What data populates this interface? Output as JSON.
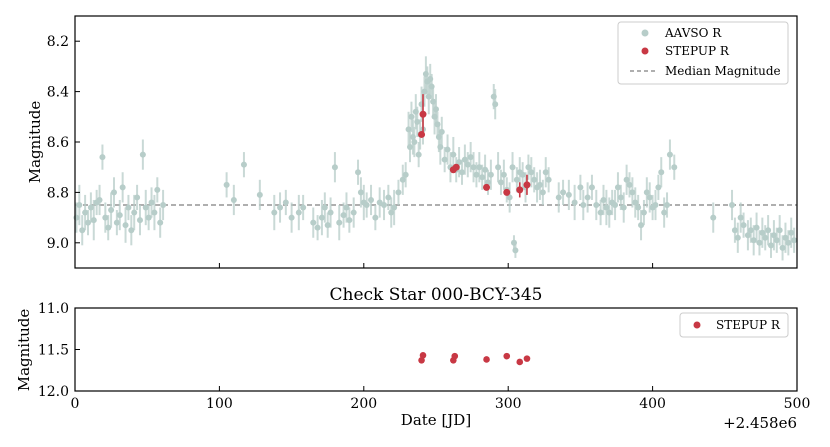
{
  "chart_data": [
    {
      "type": "scatter",
      "title": "",
      "xlabel": "",
      "ylabel": "Magnitude",
      "xlim": [
        0,
        500
      ],
      "ylim": [
        9.1,
        8.1
      ],
      "y_inverted": true,
      "xticks": [
        0,
        100,
        200,
        300,
        400,
        500
      ],
      "yticks": [
        8.2,
        8.4,
        8.6,
        8.8,
        9.0
      ],
      "ytick_labels": [
        "8.2",
        "8.4",
        "8.6",
        "8.8",
        "9.0"
      ],
      "legend": {
        "placement": "top-right",
        "entries": [
          "AAVSO R",
          "STEPUP R",
          "Median Magnitude"
        ]
      },
      "grid": false,
      "median_magnitude": 8.85,
      "series": [
        {
          "name": "AAVSO R",
          "color": "#b7cdc9",
          "points": [
            [
              1,
              8.9,
              0.06
            ],
            [
              3,
              8.85,
              0.08
            ],
            [
              5,
              8.95,
              0.06
            ],
            [
              7,
              8.88,
              0.07
            ],
            [
              9,
              8.92,
              0.05
            ],
            [
              11,
              8.86,
              0.06
            ],
            [
              13,
              8.91,
              0.08
            ],
            [
              15,
              8.84,
              0.05
            ],
            [
              17,
              8.83,
              0.06
            ],
            [
              19,
              8.66,
              0.05
            ],
            [
              21,
              8.9,
              0.06
            ],
            [
              23,
              8.94,
              0.05
            ],
            [
              25,
              8.87,
              0.07
            ],
            [
              27,
              8.8,
              0.06
            ],
            [
              29,
              8.92,
              0.05
            ],
            [
              31,
              8.89,
              0.06
            ],
            [
              33,
              8.78,
              0.06
            ],
            [
              35,
              8.93,
              0.07
            ],
            [
              37,
              8.86,
              0.05
            ],
            [
              39,
              8.95,
              0.06
            ],
            [
              41,
              8.88,
              0.07
            ],
            [
              43,
              8.82,
              0.05
            ],
            [
              45,
              8.91,
              0.06
            ],
            [
              47,
              8.65,
              0.06
            ],
            [
              49,
              8.86,
              0.07
            ],
            [
              51,
              8.9,
              0.05
            ],
            [
              53,
              8.84,
              0.06
            ],
            [
              55,
              8.88,
              0.07
            ],
            [
              57,
              8.79,
              0.05
            ],
            [
              59,
              8.92,
              0.06
            ],
            [
              61,
              8.85,
              0.06
            ],
            [
              105,
              8.77,
              0.05
            ],
            [
              110,
              8.83,
              0.06
            ],
            [
              117,
              8.69,
              0.05
            ],
            [
              128,
              8.81,
              0.06
            ],
            [
              138,
              8.88,
              0.07
            ],
            [
              142,
              8.86,
              0.06
            ],
            [
              146,
              8.84,
              0.05
            ],
            [
              150,
              8.9,
              0.06
            ],
            [
              155,
              8.88,
              0.07
            ],
            [
              158,
              8.86,
              0.05
            ],
            [
              165,
              8.92,
              0.06
            ],
            [
              168,
              8.94,
              0.05
            ],
            [
              171,
              8.9,
              0.07
            ],
            [
              173,
              8.86,
              0.06
            ],
            [
              175,
              8.93,
              0.05
            ],
            [
              177,
              8.88,
              0.06
            ],
            [
              180,
              8.7,
              0.06
            ],
            [
              183,
              8.92,
              0.07
            ],
            [
              186,
              8.89,
              0.05
            ],
            [
              188,
              8.86,
              0.06
            ],
            [
              190,
              8.91,
              0.05
            ],
            [
              193,
              8.88,
              0.06
            ],
            [
              196,
              8.72,
              0.05
            ],
            [
              198,
              8.8,
              0.06
            ],
            [
              200,
              8.84,
              0.07
            ],
            [
              202,
              8.85,
              0.05
            ],
            [
              205,
              8.83,
              0.06
            ],
            [
              208,
              8.9,
              0.05
            ],
            [
              211,
              8.84,
              0.06
            ],
            [
              214,
              8.85,
              0.06
            ],
            [
              217,
              8.82,
              0.05
            ],
            [
              219,
              8.88,
              0.06
            ],
            [
              221,
              8.86,
              0.07
            ],
            [
              224,
              8.8,
              0.05
            ],
            [
              227,
              8.75,
              0.06
            ],
            [
              229,
              8.73,
              0.05
            ],
            [
              231,
              8.55,
              0.07
            ],
            [
              232,
              8.62,
              0.06
            ],
            [
              233,
              8.5,
              0.06
            ],
            [
              234,
              8.58,
              0.07
            ],
            [
              235,
              8.6,
              0.06
            ],
            [
              236,
              8.48,
              0.07
            ],
            [
              237,
              8.52,
              0.06
            ],
            [
              238,
              8.65,
              0.05
            ],
            [
              239,
              8.57,
              0.06
            ],
            [
              240,
              8.45,
              0.07
            ],
            [
              241,
              8.55,
              0.06
            ],
            [
              242,
              8.4,
              0.06
            ],
            [
              243,
              8.33,
              0.07
            ],
            [
              244,
              8.36,
              0.06
            ],
            [
              245,
              8.42,
              0.07
            ],
            [
              246,
              8.35,
              0.06
            ],
            [
              247,
              8.38,
              0.05
            ],
            [
              248,
              8.44,
              0.06
            ],
            [
              249,
              8.5,
              0.07
            ],
            [
              250,
              8.47,
              0.06
            ],
            [
              251,
              8.53,
              0.05
            ],
            [
              252,
              8.58,
              0.06
            ],
            [
              253,
              8.62,
              0.07
            ],
            [
              254,
              8.56,
              0.06
            ],
            [
              256,
              8.67,
              0.05
            ],
            [
              258,
              8.63,
              0.06
            ],
            [
              260,
              8.7,
              0.06
            ],
            [
              262,
              8.65,
              0.07
            ],
            [
              264,
              8.71,
              0.05
            ],
            [
              266,
              8.68,
              0.06
            ],
            [
              268,
              8.72,
              0.05
            ],
            [
              270,
              8.67,
              0.06
            ],
            [
              272,
              8.69,
              0.05
            ],
            [
              274,
              8.66,
              0.06
            ],
            [
              276,
              8.7,
              0.06
            ],
            [
              278,
              8.73,
              0.05
            ],
            [
              280,
              8.7,
              0.06
            ],
            [
              282,
              8.74,
              0.05
            ],
            [
              284,
              8.71,
              0.06
            ],
            [
              286,
              8.76,
              0.05
            ],
            [
              288,
              8.73,
              0.06
            ],
            [
              290,
              8.42,
              0.05
            ],
            [
              291,
              8.45,
              0.06
            ],
            [
              293,
              8.7,
              0.06
            ],
            [
              295,
              8.76,
              0.05
            ],
            [
              297,
              8.73,
              0.06
            ],
            [
              299,
              8.79,
              0.05
            ],
            [
              301,
              8.82,
              0.06
            ],
            [
              303,
              8.7,
              0.06
            ],
            [
              304,
              9.0,
              0.03
            ],
            [
              305,
              9.03,
              0.03
            ],
            [
              306,
              8.75,
              0.05
            ],
            [
              308,
              8.72,
              0.06
            ],
            [
              310,
              8.73,
              0.05
            ],
            [
              312,
              8.78,
              0.06
            ],
            [
              314,
              8.7,
              0.05
            ],
            [
              316,
              8.72,
              0.06
            ],
            [
              318,
              8.75,
              0.05
            ],
            [
              320,
              8.78,
              0.06
            ],
            [
              322,
              8.77,
              0.06
            ],
            [
              324,
              8.8,
              0.05
            ],
            [
              326,
              8.72,
              0.06
            ],
            [
              328,
              8.75,
              0.05
            ],
            [
              335,
              8.82,
              0.06
            ],
            [
              338,
              8.8,
              0.05
            ],
            [
              342,
              8.81,
              0.06
            ],
            [
              346,
              8.84,
              0.07
            ],
            [
              350,
              8.78,
              0.05
            ],
            [
              352,
              8.85,
              0.06
            ],
            [
              355,
              8.82,
              0.06
            ],
            [
              358,
              8.78,
              0.05
            ],
            [
              361,
              8.85,
              0.06
            ],
            [
              364,
              8.88,
              0.05
            ],
            [
              366,
              8.83,
              0.06
            ],
            [
              368,
              8.86,
              0.07
            ],
            [
              370,
              8.88,
              0.06
            ],
            [
              372,
              8.84,
              0.05
            ],
            [
              374,
              8.85,
              0.06
            ],
            [
              376,
              8.78,
              0.06
            ],
            [
              378,
              8.82,
              0.05
            ],
            [
              380,
              8.86,
              0.06
            ],
            [
              382,
              8.75,
              0.06
            ],
            [
              384,
              8.77,
              0.05
            ],
            [
              386,
              8.8,
              0.06
            ],
            [
              388,
              8.84,
              0.06
            ],
            [
              390,
              8.86,
              0.05
            ],
            [
              392,
              8.93,
              0.06
            ],
            [
              394,
              8.88,
              0.05
            ],
            [
              396,
              8.8,
              0.06
            ],
            [
              398,
              8.82,
              0.06
            ],
            [
              400,
              8.86,
              0.05
            ],
            [
              402,
              8.85,
              0.06
            ],
            [
              404,
              8.78,
              0.05
            ],
            [
              406,
              8.72,
              0.06
            ],
            [
              408,
              8.88,
              0.06
            ],
            [
              410,
              8.85,
              0.05
            ],
            [
              412,
              8.65,
              0.06
            ],
            [
              415,
              8.7,
              0.05
            ],
            [
              442,
              8.9,
              0.06
            ],
            [
              455,
              8.85,
              0.06
            ],
            [
              457,
              8.95,
              0.05
            ],
            [
              459,
              8.98,
              0.06
            ],
            [
              461,
              8.9,
              0.06
            ],
            [
              463,
              8.93,
              0.05
            ],
            [
              466,
              8.97,
              0.06
            ],
            [
              468,
              8.95,
              0.05
            ],
            [
              470,
              8.99,
              0.06
            ],
            [
              472,
              8.94,
              0.06
            ],
            [
              474,
              9.0,
              0.05
            ],
            [
              476,
              8.96,
              0.06
            ],
            [
              478,
              8.98,
              0.05
            ],
            [
              480,
              8.95,
              0.06
            ],
            [
              482,
              9.01,
              0.05
            ],
            [
              484,
              8.97,
              0.06
            ],
            [
              486,
              8.99,
              0.05
            ],
            [
              488,
              8.95,
              0.06
            ],
            [
              490,
              9.02,
              0.05
            ],
            [
              492,
              8.98,
              0.06
            ],
            [
              494,
              9.0,
              0.05
            ],
            [
              496,
              8.96,
              0.06
            ],
            [
              498,
              8.99,
              0.05
            ]
          ]
        },
        {
          "name": "STEPUP R",
          "color": "#c83844",
          "points": [
            [
              240,
              8.57,
              0.0
            ],
            [
              241,
              8.49,
              0.08
            ],
            [
              262,
              8.71,
              0.0
            ],
            [
              264,
              8.7,
              0.0
            ],
            [
              285,
              8.78,
              0.0
            ],
            [
              299,
              8.8,
              0.0
            ],
            [
              308,
              8.79,
              0.03
            ],
            [
              313,
              8.77,
              0.04
            ]
          ]
        }
      ]
    },
    {
      "type": "scatter",
      "title": "Check Star 000-BCY-345",
      "xlabel": "Date [JD]",
      "ylabel": "Magnitude",
      "xlim": [
        0,
        500
      ],
      "ylim": [
        12.0,
        11.0
      ],
      "y_inverted": true,
      "xticks": [
        0,
        100,
        200,
        300,
        400,
        500
      ],
      "xtick_labels": [
        "0",
        "100",
        "200",
        "300",
        "400",
        "500"
      ],
      "yticks": [
        11.0,
        11.5,
        12.0
      ],
      "ytick_labels": [
        "11.0",
        "11.5",
        "12.0"
      ],
      "x_offset_label": "+2.458e6",
      "legend": {
        "placement": "top-right",
        "entries": [
          "STEPUP R"
        ]
      },
      "grid": false,
      "series": [
        {
          "name": "STEPUP R",
          "color": "#c83844",
          "points": [
            [
              240,
              11.63
            ],
            [
              241,
              11.57
            ],
            [
              262,
              11.63
            ],
            [
              263,
              11.58
            ],
            [
              285,
              11.62
            ],
            [
              299,
              11.58
            ],
            [
              308,
              11.65
            ],
            [
              313,
              11.61
            ]
          ]
        }
      ]
    }
  ],
  "colors": {
    "aavso": "#b7cdc9",
    "stepup": "#c83844",
    "median_line": "#7f7f7f"
  }
}
